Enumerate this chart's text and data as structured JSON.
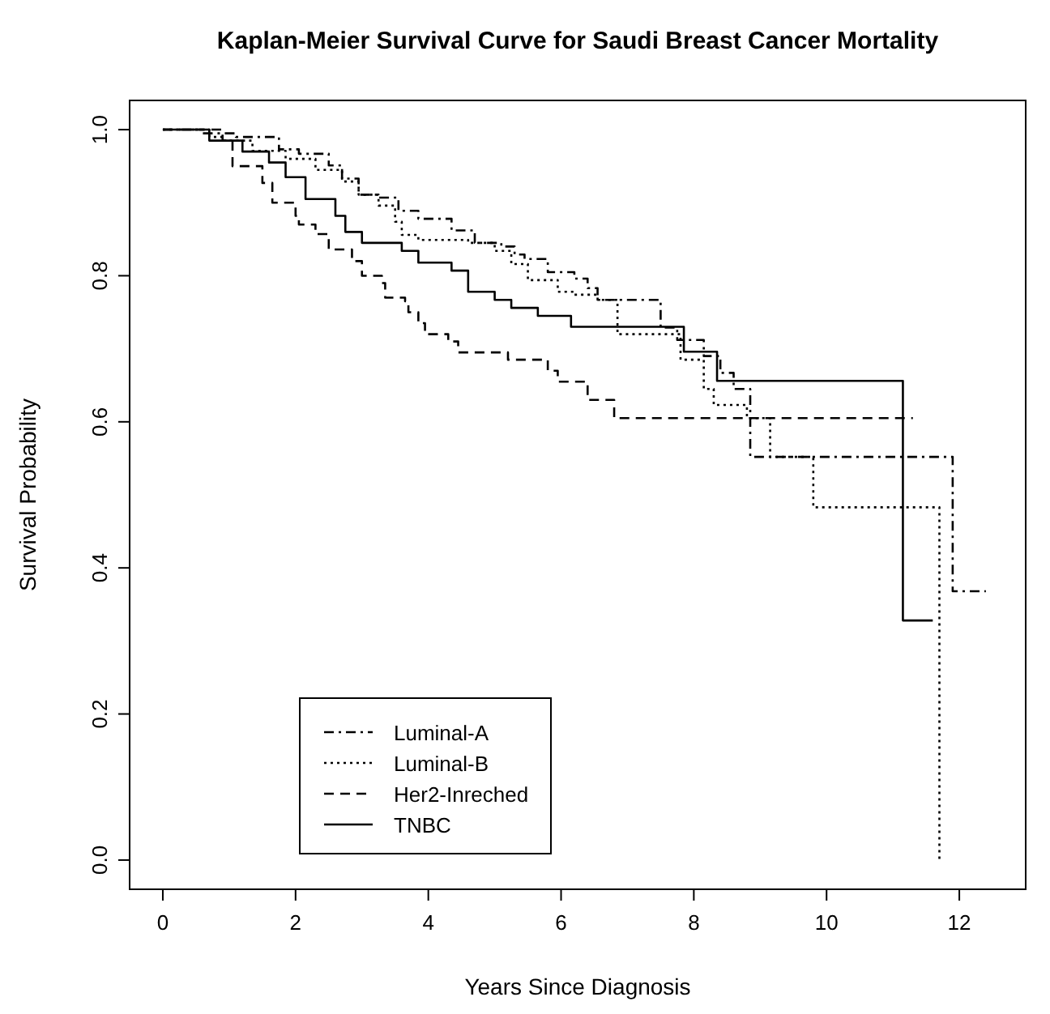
{
  "chart_data": {
    "type": "step",
    "title": "Kaplan-Meier Survival Curve for Saudi Breast Cancer Mortality",
    "xlabel": "Years Since Diagnosis",
    "ylabel": "Survival Probability",
    "xlim": [
      -0.5,
      13
    ],
    "xticks": [
      0,
      2,
      4,
      6,
      8,
      10,
      12
    ],
    "ylim": [
      -0.04,
      1.04
    ],
    "yticks": [
      {
        "value": 0,
        "label": "0.0"
      },
      {
        "value": 0.2,
        "label": "0.2"
      },
      {
        "value": 0.4,
        "label": "0.4"
      },
      {
        "value": 0.6,
        "label": "0.6"
      },
      {
        "value": 0.8,
        "label": "0.8"
      },
      {
        "value": 1,
        "label": "1.0"
      }
    ],
    "legend": "bottom left",
    "grid": false,
    "series": [
      {
        "name": "Luminal-A",
        "color": "#000000",
        "line_style": "dashdot",
        "x": [
          0,
          0.6,
          1.1,
          1.75,
          2.05,
          2.5,
          2.7,
          2.95,
          3.25,
          3.55,
          3.85,
          4.35,
          4.7,
          5.1,
          5.3,
          5.45,
          5.8,
          6.2,
          6.4,
          6.55,
          7.5,
          7.75,
          8.15,
          8.4,
          8.6,
          8.85,
          11.9,
          12.4
        ],
        "values": [
          1,
          0.995,
          0.99,
          0.973,
          0.967,
          0.951,
          0.933,
          0.911,
          0.907,
          0.889,
          0.878,
          0.862,
          0.845,
          0.84,
          0.829,
          0.823,
          0.805,
          0.796,
          0.783,
          0.767,
          0.729,
          0.712,
          0.69,
          0.667,
          0.645,
          0.552,
          0.368,
          0.368
        ]
      },
      {
        "name": "Luminal-B",
        "color": "#000000",
        "line_style": "dotted",
        "x": [
          0,
          0.7,
          0.9,
          1.35,
          1.85,
          2.3,
          2.7,
          2.95,
          3.25,
          3.5,
          3.6,
          3.85,
          4.6,
          5.0,
          5.25,
          5.5,
          5.95,
          6.2,
          6.55,
          6.85,
          7.8,
          8.15,
          8.3,
          8.8,
          9.15,
          9.8,
          11.7
        ],
        "values": [
          1,
          0.99,
          0.985,
          0.971,
          0.96,
          0.945,
          0.929,
          0.911,
          0.896,
          0.874,
          0.856,
          0.849,
          0.845,
          0.834,
          0.816,
          0.794,
          0.778,
          0.774,
          0.767,
          0.72,
          0.685,
          0.645,
          0.623,
          0.605,
          0.552,
          0.483,
          0
        ]
      },
      {
        "name": "Her2-Inreched",
        "color": "#000000",
        "line_style": "dashed",
        "x": [
          0,
          0.9,
          1.05,
          1.5,
          1.65,
          2.0,
          2.05,
          2.3,
          2.5,
          2.85,
          3.0,
          3.3,
          3.35,
          3.65,
          3.7,
          3.85,
          3.95,
          4.3,
          4.45,
          5.2,
          5.8,
          5.95,
          6.4,
          6.8,
          11.3
        ],
        "values": [
          1,
          0.985,
          0.95,
          0.927,
          0.9,
          0.882,
          0.87,
          0.857,
          0.836,
          0.82,
          0.8,
          0.79,
          0.77,
          0.765,
          0.75,
          0.735,
          0.72,
          0.71,
          0.695,
          0.685,
          0.67,
          0.655,
          0.63,
          0.605,
          0.605
        ]
      },
      {
        "name": "TNBC",
        "color": "#000000",
        "line_style": "solid",
        "x": [
          0,
          0.7,
          1.2,
          1.6,
          1.85,
          2.15,
          2.6,
          2.75,
          3.0,
          3.6,
          3.85,
          4.35,
          4.6,
          5.0,
          5.25,
          5.65,
          6.15,
          7.85,
          8.35,
          11.15,
          11.6
        ],
        "values": [
          1,
          0.985,
          0.97,
          0.955,
          0.935,
          0.905,
          0.882,
          0.86,
          0.845,
          0.834,
          0.818,
          0.807,
          0.778,
          0.767,
          0.756,
          0.745,
          0.73,
          0.696,
          0.656,
          0.328,
          0.328
        ]
      }
    ]
  }
}
